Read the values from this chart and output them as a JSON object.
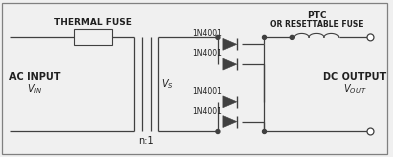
{
  "bg_color": "#f0f0f0",
  "border_color": "#808080",
  "line_color": "#404040",
  "text_color": "#202020",
  "fig_width": 3.93,
  "fig_height": 1.57,
  "dpi": 100,
  "labels": {
    "thermal_fuse": "THERMAL FUSE",
    "ac_input": "AC INPUT",
    "vin": "$V_{IN}$",
    "vs": "$V_S$",
    "n1": "n:1",
    "d1": "1N4001",
    "d2": "1N4001",
    "d3": "1N4001",
    "d4": "1N4001",
    "ptc": "PTC",
    "or_resettable": "OR RESETTABLE FUSE",
    "dc_output": "DC OUTPUT",
    "vout": "$V_{OUT}$"
  }
}
